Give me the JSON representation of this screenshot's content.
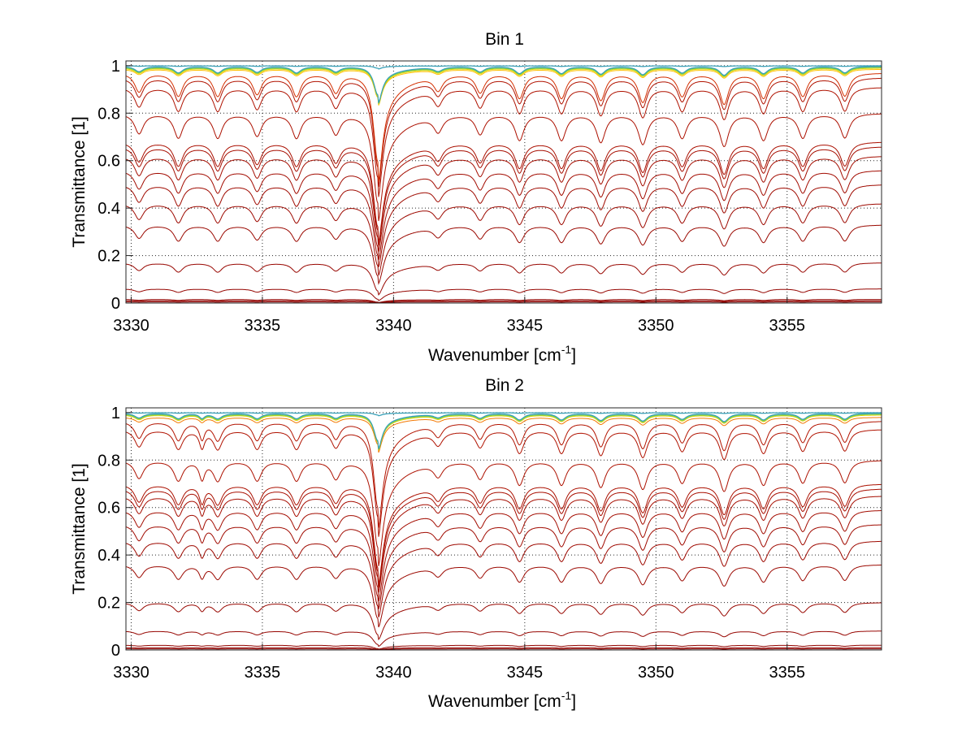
{
  "chart_data": [
    {
      "type": "line",
      "title": "Bin 1",
      "xlabel": {
        "text": "Wavenumber [cm",
        "sup": "-1",
        "suffix": "]"
      },
      "ylabel": "Transmittance [1]",
      "xlim": [
        3329.8,
        3358.6
      ],
      "ylim": [
        0,
        1.02
      ],
      "xticks": [
        3330,
        3335,
        3340,
        3345,
        3350,
        3355
      ],
      "xtick_labels": [
        "3330",
        "3335",
        "3340",
        "3345",
        "3350",
        "3355"
      ],
      "yticks": [
        0,
        0.2,
        0.4,
        0.6,
        0.8,
        1
      ],
      "ytick_labels": [
        "0",
        "0.2",
        "0.4",
        "0.6",
        "0.8",
        "1"
      ],
      "grid": true,
      "legend": "none",
      "colormap": [
        "#8b0000",
        "#c81e00",
        "#e04000",
        "#f06400",
        "#f88c00",
        "#ffb000",
        "#ffd000",
        "#c8e000",
        "#40c0a0",
        "#3080d0"
      ],
      "strong_line": {
        "center": 3339.4,
        "depth": 0.85,
        "width": 0.18
      },
      "weak_lines": [
        {
          "center": 3330.3,
          "depth": 0.45,
          "width": 0.2
        },
        {
          "center": 3331.8,
          "depth": 0.55,
          "width": 0.2
        },
        {
          "center": 3333.3,
          "depth": 0.55,
          "width": 0.2
        },
        {
          "center": 3334.8,
          "depth": 0.5,
          "width": 0.2
        },
        {
          "center": 3336.3,
          "depth": 0.55,
          "width": 0.2
        },
        {
          "center": 3337.8,
          "depth": 0.45,
          "width": 0.2
        },
        {
          "center": 3341.7,
          "depth": 0.35,
          "width": 0.2
        },
        {
          "center": 3343.3,
          "depth": 0.45,
          "width": 0.2
        },
        {
          "center": 3344.8,
          "depth": 0.6,
          "width": 0.2
        },
        {
          "center": 3346.4,
          "depth": 0.6,
          "width": 0.2
        },
        {
          "center": 3347.9,
          "depth": 0.65,
          "width": 0.2
        },
        {
          "center": 3349.5,
          "depth": 0.7,
          "width": 0.2
        },
        {
          "center": 3351.0,
          "depth": 0.55,
          "width": 0.2
        },
        {
          "center": 3352.6,
          "depth": 0.75,
          "width": 0.2
        },
        {
          "center": 3354.1,
          "depth": 0.6,
          "width": 0.2
        },
        {
          "center": 3355.6,
          "depth": 0.55,
          "width": 0.2
        },
        {
          "center": 3357.2,
          "depth": 0.55,
          "width": 0.2
        }
      ],
      "series_baselines": [
        0.0,
        0.005,
        0.01,
        0.015,
        0.06,
        0.17,
        0.33,
        0.42,
        0.5,
        0.56,
        0.62,
        0.66,
        0.68,
        0.8,
        0.91,
        0.95,
        0.97,
        0.985,
        0.99,
        0.993,
        0.995,
        0.997,
        0.998,
        0.999,
        1.0
      ]
    },
    {
      "type": "line",
      "title": "Bin 2",
      "xlabel": {
        "text": "Wavenumber [cm",
        "sup": "-1",
        "suffix": "]"
      },
      "ylabel": "Transmittance [1]",
      "xlim": [
        3329.8,
        3358.6
      ],
      "ylim": [
        0,
        1.02
      ],
      "xticks": [
        3330,
        3335,
        3340,
        3345,
        3350,
        3355
      ],
      "xtick_labels": [
        "3330",
        "3335",
        "3340",
        "3345",
        "3350",
        "3355"
      ],
      "yticks": [
        0,
        0.2,
        0.4,
        0.6,
        0.8,
        1
      ],
      "ytick_labels": [
        "0",
        "0.2",
        "0.4",
        "0.6",
        "0.8",
        "1"
      ],
      "grid": true,
      "legend": "none",
      "colormap": [
        "#8b0000",
        "#c81e00",
        "#e04000",
        "#f06400",
        "#f88c00",
        "#ffb000",
        "#ffd000",
        "#c8e000",
        "#40c0a0",
        "#3080d0"
      ],
      "strong_line": {
        "center": 3339.4,
        "depth": 0.82,
        "width": 0.18
      },
      "weak_lines": [
        {
          "center": 3330.3,
          "depth": 0.4,
          "width": 0.2
        },
        {
          "center": 3331.8,
          "depth": 0.45,
          "width": 0.2
        },
        {
          "center": 3332.7,
          "depth": 0.4,
          "width": 0.12
        },
        {
          "center": 3333.3,
          "depth": 0.45,
          "width": 0.2
        },
        {
          "center": 3334.8,
          "depth": 0.45,
          "width": 0.2
        },
        {
          "center": 3336.3,
          "depth": 0.45,
          "width": 0.2
        },
        {
          "center": 3337.8,
          "depth": 0.4,
          "width": 0.2
        },
        {
          "center": 3341.7,
          "depth": 0.3,
          "width": 0.2
        },
        {
          "center": 3343.3,
          "depth": 0.4,
          "width": 0.2
        },
        {
          "center": 3344.8,
          "depth": 0.55,
          "width": 0.2
        },
        {
          "center": 3346.4,
          "depth": 0.55,
          "width": 0.2
        },
        {
          "center": 3347.9,
          "depth": 0.6,
          "width": 0.2
        },
        {
          "center": 3349.5,
          "depth": 0.65,
          "width": 0.2
        },
        {
          "center": 3351.0,
          "depth": 0.5,
          "width": 0.2
        },
        {
          "center": 3352.6,
          "depth": 0.7,
          "width": 0.2
        },
        {
          "center": 3354.1,
          "depth": 0.55,
          "width": 0.2
        },
        {
          "center": 3355.6,
          "depth": 0.5,
          "width": 0.2
        },
        {
          "center": 3357.2,
          "depth": 0.5,
          "width": 0.2
        }
      ],
      "series_baselines": [
        0.0,
        0.005,
        0.01,
        0.02,
        0.08,
        0.2,
        0.36,
        0.46,
        0.53,
        0.59,
        0.65,
        0.68,
        0.7,
        0.8,
        0.93,
        0.965,
        0.98,
        0.99,
        0.993,
        0.995,
        0.997,
        0.998,
        0.999,
        1.0
      ]
    }
  ]
}
